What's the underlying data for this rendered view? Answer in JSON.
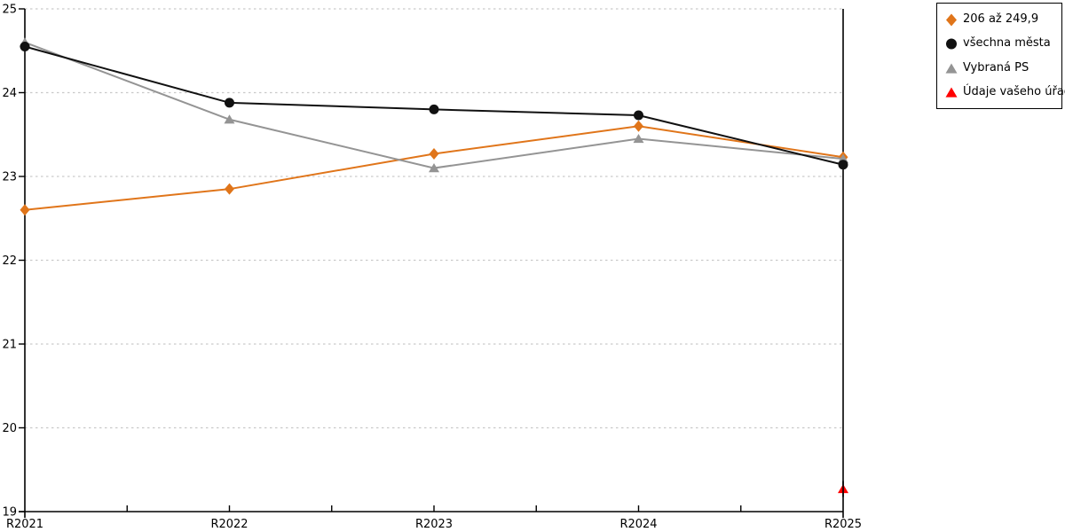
{
  "chart_data": {
    "type": "line",
    "categories": [
      "R2021",
      "R2022",
      "R2023",
      "R2024",
      "R2025"
    ],
    "series": [
      {
        "name": "206 až 249,9",
        "marker": "diamond",
        "color": "#E0751A",
        "values": [
          22.6,
          22.85,
          23.27,
          23.6,
          23.23
        ]
      },
      {
        "name": "všechna města",
        "marker": "circle",
        "color": "#111111",
        "values": [
          24.55,
          23.88,
          23.8,
          23.73,
          23.14
        ]
      },
      {
        "name": "Vybraná PS",
        "marker": "triangle",
        "color": "#949494",
        "values": [
          24.6,
          23.68,
          23.1,
          23.45,
          23.21
        ]
      },
      {
        "name": "Údaje vašeho úřadu",
        "marker": "triangle",
        "color": "#FF0000",
        "values": [
          null,
          null,
          null,
          null,
          19.27
        ]
      }
    ],
    "title": "",
    "xlabel": "",
    "ylabel": "",
    "ylim": [
      19,
      25
    ],
    "ytick_step": 1,
    "yticks": [
      19,
      20,
      21,
      22,
      23,
      24,
      25
    ],
    "grid": "horizontal-dotted",
    "grid_color": "#c9c9c9",
    "axis_color": "#000000",
    "legend_position": "top-right"
  }
}
